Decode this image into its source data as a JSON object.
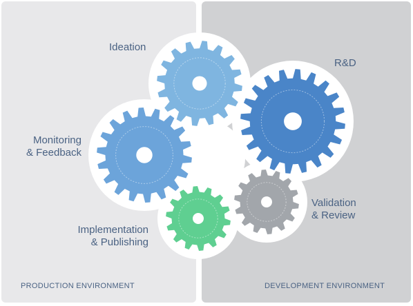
{
  "labels": {
    "ideation": "Ideation",
    "rnd": "R&D",
    "monitoring": "Monitoring\n& Feedback",
    "validation": "Validation\n& Review",
    "implementation": "Implementation\n& Publishing"
  },
  "environments": {
    "production": "PRODUCTION ENVIRONMENT",
    "development": "DEVELOPMENT ENVIRONMENT"
  },
  "colors": {
    "left_panel": "#e8e8ea",
    "right_panel": "#d0d1d3",
    "text": "#4a6283",
    "gear_ideation": "#7fb5e0",
    "gear_rnd": "#4a85c8",
    "gear_monitoring": "#6ca4da",
    "gear_validation": "#a2a6ab",
    "gear_implementation": "#5fcf91"
  }
}
